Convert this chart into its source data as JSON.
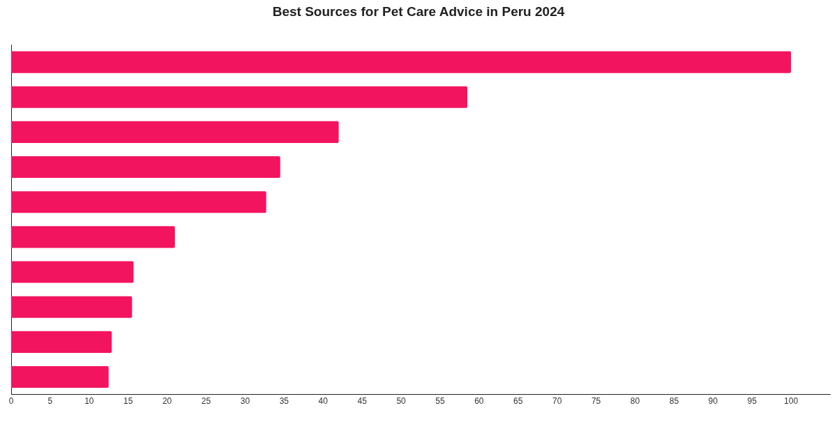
{
  "chart_data": {
    "type": "bar",
    "orientation": "horizontal",
    "title": "Best Sources for Pet Care Advice in Peru 2024",
    "categories": [
      null,
      null,
      null,
      null,
      null,
      null,
      null,
      null,
      null,
      null
    ],
    "values": [
      100,
      58.5,
      42,
      34.5,
      32.7,
      21,
      15.7,
      15.5,
      12.9,
      12.5
    ],
    "color": "#f2145f",
    "xlim": [
      0,
      105
    ],
    "xticks": [
      0,
      5,
      10,
      15,
      20,
      25,
      30,
      35,
      40,
      45,
      50,
      55,
      60,
      65,
      70,
      75,
      80,
      85,
      90,
      95,
      100
    ],
    "grid": false,
    "legend": false
  }
}
